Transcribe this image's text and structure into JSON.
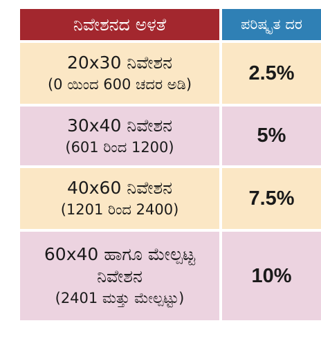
{
  "header": {
    "col1": "ನಿವೇಶನದ ಅಳತೆ",
    "col2": "ಪರಿಷ್ಕೃತ ದರ"
  },
  "rows": [
    {
      "line1": "20x30 ನಿವೇಶನ",
      "line2": "(0 ಯಿಂದ 600 ಚದರ ಅಡಿ)",
      "rate": "2.5%"
    },
    {
      "line1": "30x40 ನಿವೇಶನ",
      "line2": "(601 ರಿಂದ 1200)",
      "rate": "5%"
    },
    {
      "line1": "40x60 ನಿವೇಶನ",
      "line2": "(1201 ರಿಂದ 2400)",
      "rate": "7.5%"
    },
    {
      "line1": "60x40 ಹಾಗೂ ಮೇಲ್ಪಟ್ಟ",
      "line1b": "ನಿವೇಶನ",
      "line2": "(2401 ಮತ್ತು ಮೇಲ್ಪಟ್ಟು)",
      "rate": "10%"
    }
  ],
  "colors": {
    "header_left": "#a3272e",
    "header_right": "#2f80b5",
    "row_cream": "#fbe7c5",
    "row_pink": "#ecd3e0"
  }
}
